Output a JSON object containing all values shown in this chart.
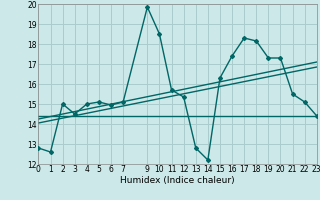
{
  "title": "",
  "xlabel": "Humidex (Indice chaleur)",
  "xlim": [
    0,
    23
  ],
  "ylim": [
    12,
    20
  ],
  "yticks": [
    12,
    13,
    14,
    15,
    16,
    17,
    18,
    19,
    20
  ],
  "xticks": [
    0,
    1,
    2,
    3,
    4,
    5,
    6,
    7,
    9,
    10,
    11,
    12,
    13,
    14,
    15,
    16,
    17,
    18,
    19,
    20,
    21,
    22,
    23
  ],
  "background_color": "#cce8e8",
  "grid_color": "#aacccc",
  "line_color": "#006666",
  "line1_x": [
    0,
    1,
    2,
    3,
    4,
    5,
    6,
    7,
    9,
    10,
    11,
    12,
    13,
    14,
    15,
    16,
    17,
    18,
    19,
    20,
    21,
    22,
    23
  ],
  "line1_y": [
    12.8,
    12.6,
    15.0,
    14.5,
    15.0,
    15.1,
    14.95,
    15.1,
    19.85,
    18.5,
    15.7,
    15.35,
    12.8,
    12.2,
    16.3,
    17.4,
    18.3,
    18.15,
    17.3,
    17.3,
    15.5,
    15.1,
    14.4
  ],
  "line2_x": [
    0,
    23
  ],
  "line2_y": [
    14.4,
    14.4
  ],
  "line3_x": [
    0,
    23
  ],
  "line3_y": [
    14.05,
    16.85
  ],
  "line4_x": [
    0,
    23
  ],
  "line4_y": [
    14.25,
    17.1
  ]
}
